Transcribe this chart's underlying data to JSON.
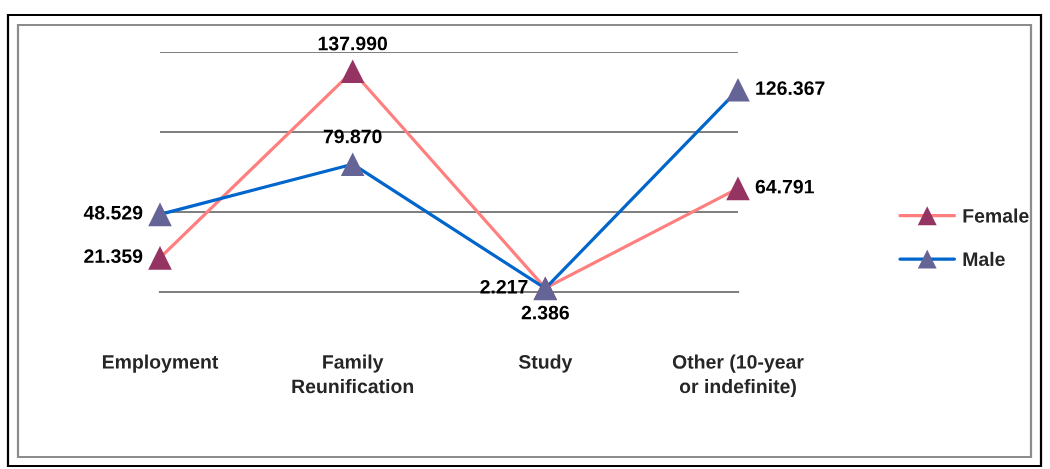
{
  "chart_data": {
    "type": "line",
    "categories": [
      "Employment",
      "Family Reunification",
      "Study",
      "Other (10-year or indefinite)"
    ],
    "series": [
      {
        "name": "Female",
        "color": "#ff7f7f",
        "colors": [
          "#953462",
          "#953462",
          "#953462",
          "#953462"
        ],
        "values": [
          21.359,
          137.99,
          2.386,
          64.791
        ],
        "value_labels": [
          "21.359",
          "137.990",
          "2.386",
          "64.791"
        ]
      },
      {
        "name": "Male",
        "color": "#0066cc",
        "colors": [
          "#646497",
          "#646497",
          "#646497",
          "#646497"
        ],
        "values": [
          48.529,
          79.87,
          2.217,
          126.367
        ],
        "value_labels": [
          "48.529",
          "79.870",
          "2.217",
          "126.367"
        ]
      }
    ],
    "ylim": [
      0,
      150
    ],
    "yticks": [
      {
        "value": 0,
        "label": null
      },
      {
        "value": 50,
        "label": null
      },
      {
        "value": 100,
        "label": null
      },
      {
        "value": 150,
        "label": null
      }
    ],
    "grid": "y",
    "legend": "right",
    "marker": "triangle",
    "line_style": "solid",
    "tick_labels": "x"
  }
}
